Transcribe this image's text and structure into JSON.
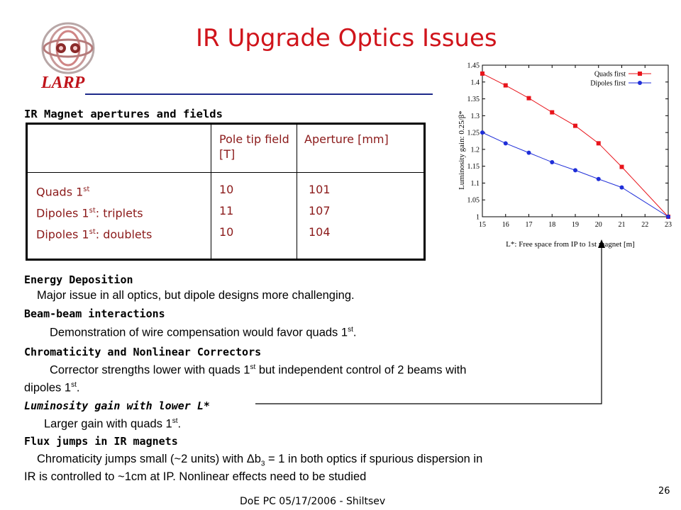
{
  "slide": {
    "title": "IR Upgrade Optics Issues",
    "logo_text": "LARP",
    "table_heading": "IR Magnet apertures and fields",
    "footer": "DoE PC 05/17/2006 - Shiltsev",
    "page_number": "26"
  },
  "table": {
    "headers": [
      "",
      "Pole tip field [T]",
      "Aperture [mm]"
    ],
    "rows": [
      {
        "name_main": "Quads 1",
        "name_sup": "st",
        "name_rest": "",
        "field": "10",
        "aperture": "101"
      },
      {
        "name_main": "Dipoles 1",
        "name_sup": "st",
        "name_rest": ": triplets",
        "field": "11",
        "aperture": "107"
      },
      {
        "name_main": "Dipoles 1",
        "name_sup": "st",
        "name_rest": ": doublets",
        "field": "10",
        "aperture": "104"
      }
    ]
  },
  "sections": {
    "energy": {
      "heading": "Energy Deposition",
      "body": "Major issue in all optics, but dipole designs more challenging."
    },
    "beambeam": {
      "heading": "Beam-beam interactions",
      "body": "Demonstration of wire compensation would favor quads 1",
      "body_sup": "st",
      "body_end": "."
    },
    "chroma": {
      "heading": "Chromaticity and Nonlinear Correctors",
      "body1": "Corrector strengths lower with quads 1",
      "body1_sup": "st",
      "body1_end": " but independent control of 2 beams with",
      "body2": "dipoles 1",
      "body2_sup": "st",
      "body2_end": "."
    },
    "lumi": {
      "heading": "Luminosity gain with lower L*",
      "body": "Larger gain with quads 1",
      "body_sup": "st",
      "body_end": "."
    },
    "flux": {
      "heading": "Flux jumps in IR magnets",
      "body1_a": "Chromaticity jumps small (~2 units) with Δb",
      "body1_sub": "3",
      "body1_b": " = 1 in both optics if spurious dispersion in",
      "body2": "IR is controlled to ~1cm at IP. Nonlinear effects need to be studied"
    }
  },
  "chart_data": {
    "type": "line",
    "xlabel": "L*: Free space from IP to 1st magnet [m]",
    "ylabel": "Luminosity gain: 0.25/β*",
    "xlim": [
      15,
      23
    ],
    "ylim": [
      1,
      1.45
    ],
    "x_ticks": [
      "15",
      "16",
      "17",
      "18",
      "19",
      "20",
      "21",
      "22",
      "23"
    ],
    "y_ticks": [
      "1",
      "1.05",
      "1.1",
      "1.15",
      "1.2",
      "1.25",
      "1.3",
      "1.35",
      "1.4",
      "1.45"
    ],
    "legend_position": "top-right",
    "series": [
      {
        "name": "Quads first",
        "color": "#e8141b",
        "marker": "square",
        "x": [
          15,
          16,
          17,
          18,
          19,
          20,
          21,
          23
        ],
        "y": [
          1.425,
          1.39,
          1.352,
          1.31,
          1.27,
          1.218,
          1.148,
          1.0
        ]
      },
      {
        "name": "Dipoles first",
        "color": "#1f2ed8",
        "marker": "circle",
        "x": [
          15,
          16,
          17,
          18,
          19,
          20,
          21,
          23
        ],
        "y": [
          1.25,
          1.218,
          1.19,
          1.162,
          1.138,
          1.112,
          1.087,
          1.0
        ]
      }
    ]
  },
  "colors": {
    "title": "#d0141b",
    "rule": "#1d2a8a",
    "table_text": "#8b1a1a"
  }
}
